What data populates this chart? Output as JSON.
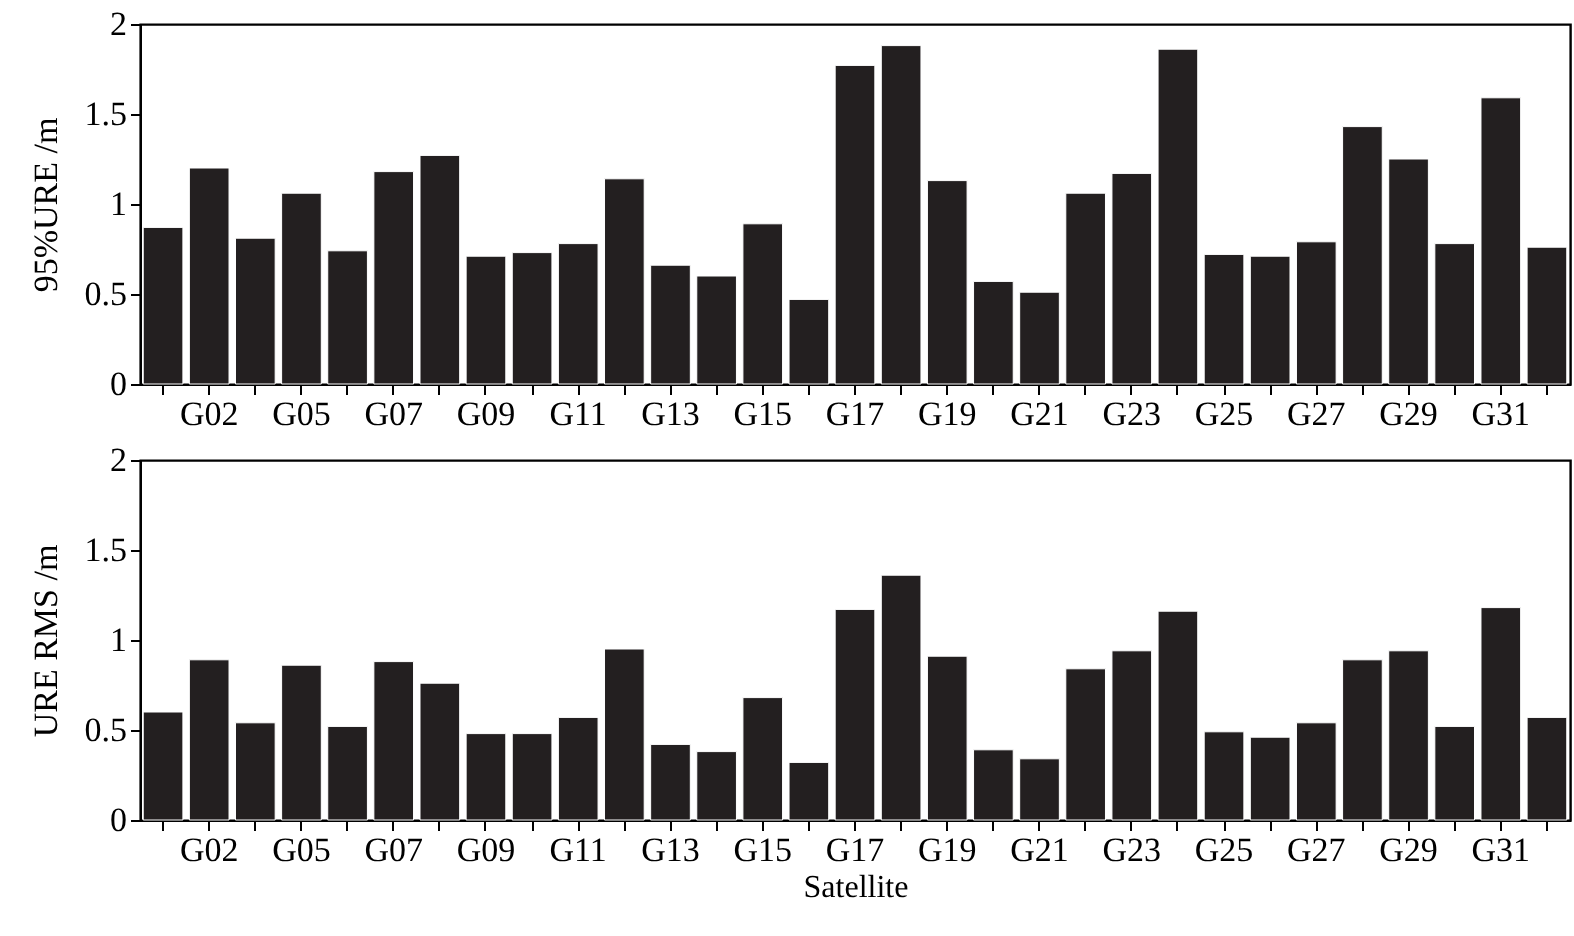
{
  "chart_data": [
    {
      "type": "bar",
      "ylabel": "95%URE /m",
      "categories": [
        null,
        "G02",
        null,
        "G05",
        null,
        "G07",
        null,
        "G09",
        null,
        "G11",
        null,
        "G13",
        null,
        "G15",
        null,
        "G17",
        null,
        "G19",
        null,
        "G21",
        null,
        "G23",
        null,
        "G25",
        null,
        "G27",
        null,
        "G29",
        null,
        "G31",
        null
      ],
      "values": [
        0.87,
        1.2,
        0.81,
        1.06,
        0.74,
        1.18,
        1.27,
        0.71,
        0.73,
        0.78,
        1.14,
        0.66,
        0.6,
        0.89,
        0.47,
        1.77,
        1.88,
        1.13,
        0.57,
        0.51,
        1.06,
        1.17,
        1.86,
        0.72,
        0.71,
        0.79,
        1.43,
        1.25,
        0.78,
        1.59,
        0.76
      ],
      "color": "#231f20",
      "ylim": [
        0,
        2
      ],
      "yticks": [
        0,
        0.5,
        1,
        1.5,
        2
      ],
      "grid": false
    },
    {
      "type": "bar",
      "xlabel": "Satellite",
      "ylabel": "URE RMS /m",
      "categories": [
        null,
        "G02",
        null,
        "G05",
        null,
        "G07",
        null,
        "G09",
        null,
        "G11",
        null,
        "G13",
        null,
        "G15",
        null,
        "G17",
        null,
        "G19",
        null,
        "G21",
        null,
        "G23",
        null,
        "G25",
        null,
        "G27",
        null,
        "G29",
        null,
        "G31",
        null
      ],
      "values": [
        0.6,
        0.89,
        0.54,
        0.86,
        0.52,
        0.88,
        0.76,
        0.48,
        0.48,
        0.57,
        0.95,
        0.42,
        0.38,
        0.68,
        0.32,
        1.17,
        1.36,
        0.91,
        0.39,
        0.34,
        0.84,
        0.94,
        1.16,
        0.49,
        0.46,
        0.54,
        0.89,
        0.94,
        0.52,
        1.18,
        0.57
      ],
      "color": "#231f20",
      "ylim": [
        0,
        2
      ],
      "yticks": [
        0,
        0.5,
        1,
        1.5,
        2
      ],
      "grid": false
    }
  ]
}
